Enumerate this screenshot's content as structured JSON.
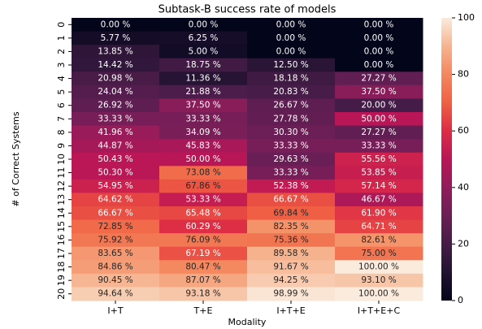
{
  "chart_data": {
    "type": "heatmap",
    "title": "Subtask-B success rate of models",
    "x_label": "Modality",
    "y_label": "# of Correct Systems",
    "x_categories": [
      "I+T",
      "T+E",
      "I+T+E",
      "I+T+E+C"
    ],
    "y_categories": [
      "0",
      "1",
      "2",
      "3",
      "4",
      "5",
      "6",
      "7",
      "8",
      "9",
      "10",
      "11",
      "12",
      "13",
      "14",
      "15",
      "16",
      "17",
      "18",
      "19",
      "20"
    ],
    "values": [
      [
        0,
        0,
        0,
        0
      ],
      [
        5.77,
        6.25,
        0,
        0
      ],
      [
        13.85,
        5.0,
        0,
        0
      ],
      [
        14.42,
        18.75,
        12.5,
        0
      ],
      [
        20.98,
        11.36,
        18.18,
        27.27
      ],
      [
        24.04,
        21.88,
        20.83,
        37.5
      ],
      [
        26.92,
        37.5,
        26.67,
        20.0
      ],
      [
        33.33,
        33.33,
        27.78,
        50.0
      ],
      [
        41.96,
        34.09,
        30.3,
        27.27
      ],
      [
        44.87,
        45.83,
        33.33,
        33.33
      ],
      [
        50.43,
        50.0,
        29.63,
        55.56
      ],
      [
        50.3,
        73.08,
        33.33,
        53.85
      ],
      [
        54.95,
        67.86,
        52.38,
        57.14
      ],
      [
        64.62,
        53.33,
        66.67,
        46.67
      ],
      [
        66.67,
        65.48,
        69.84,
        61.9
      ],
      [
        72.85,
        60.29,
        82.35,
        64.71
      ],
      [
        75.92,
        76.09,
        75.36,
        82.61
      ],
      [
        83.65,
        67.19,
        89.58,
        75.0
      ],
      [
        84.86,
        80.47,
        91.67,
        100.0
      ],
      [
        90.45,
        87.07,
        94.25,
        93.1
      ],
      [
        94.64,
        93.18,
        98.99,
        100.0
      ]
    ],
    "value_labels": [
      [
        "0.00 %",
        "0.00 %",
        "0.00 %",
        "0.00 %"
      ],
      [
        "5.77 %",
        "6.25 %",
        "0.00 %",
        "0.00 %"
      ],
      [
        "13.85 %",
        "5.00 %",
        "0.00 %",
        "0.00 %"
      ],
      [
        "14.42 %",
        "18.75 %",
        "12.50 %",
        "0.00 %"
      ],
      [
        "20.98 %",
        "11.36 %",
        "18.18 %",
        "27.27 %"
      ],
      [
        "24.04 %",
        "21.88 %",
        "20.83 %",
        "37.50 %"
      ],
      [
        "26.92 %",
        "37.50 %",
        "26.67 %",
        "20.00 %"
      ],
      [
        "33.33 %",
        "33.33 %",
        "27.78 %",
        "50.00 %"
      ],
      [
        "41.96 %",
        "34.09 %",
        "30.30 %",
        "27.27 %"
      ],
      [
        "44.87 %",
        "45.83 %",
        "33.33 %",
        "33.33 %"
      ],
      [
        "50.43 %",
        "50.00 %",
        "29.63 %",
        "55.56 %"
      ],
      [
        "50.30 %",
        "73.08 %",
        "33.33 %",
        "53.85 %"
      ],
      [
        "54.95 %",
        "67.86 %",
        "52.38 %",
        "57.14 %"
      ],
      [
        "64.62 %",
        "53.33 %",
        "66.67 %",
        "46.67 %"
      ],
      [
        "66.67 %",
        "65.48 %",
        "69.84 %",
        "61.90 %"
      ],
      [
        "72.85 %",
        "60.29 %",
        "82.35 %",
        "64.71 %"
      ],
      [
        "75.92 %",
        "76.09 %",
        "75.36 %",
        "82.61 %"
      ],
      [
        "83.65 %",
        "67.19 %",
        "89.58 %",
        "75.00 %"
      ],
      [
        "84.86 %",
        "80.47 %",
        "91.67 %",
        "100.00 %"
      ],
      [
        "90.45 %",
        "87.07 %",
        "94.25 %",
        "93.10 %"
      ],
      [
        "94.64 %",
        "93.18 %",
        "98.99 %",
        "100.00 %"
      ]
    ],
    "colormap": [
      "#03051a",
      "#221331",
      "#451c47",
      "#6a1f56",
      "#921c5b",
      "#b91657",
      "#dd2c45",
      "#f06043",
      "#f4875e",
      "#f6b48f",
      "#faebdd"
    ],
    "clim": [
      0,
      100
    ],
    "cticks": [
      0,
      20,
      40,
      60,
      80,
      100
    ]
  }
}
